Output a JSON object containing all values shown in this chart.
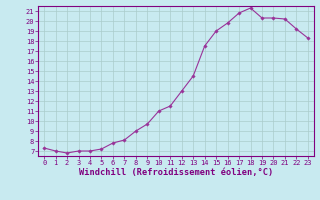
{
  "x": [
    0,
    1,
    2,
    3,
    4,
    5,
    6,
    7,
    8,
    9,
    10,
    11,
    12,
    13,
    14,
    15,
    16,
    17,
    18,
    19,
    20,
    21,
    22,
    23
  ],
  "y": [
    7.3,
    7.0,
    6.8,
    7.0,
    7.0,
    7.2,
    7.8,
    8.1,
    9.0,
    9.7,
    11.0,
    11.5,
    13.0,
    14.5,
    17.5,
    19.0,
    19.8,
    20.8,
    21.3,
    20.3,
    20.3,
    20.2,
    19.2,
    18.3
  ],
  "line_color": "#993399",
  "marker": "D",
  "marker_size": 1.8,
  "bg_color": "#c8eaf0",
  "grid_color": "#aacccc",
  "xlabel": "Windchill (Refroidissement éolien,°C)",
  "xlim": [
    -0.5,
    23.5
  ],
  "ylim": [
    6.5,
    21.5
  ],
  "yticks": [
    7,
    8,
    9,
    10,
    11,
    12,
    13,
    14,
    15,
    16,
    17,
    18,
    19,
    20,
    21
  ],
  "xticks": [
    0,
    1,
    2,
    3,
    4,
    5,
    6,
    7,
    8,
    9,
    10,
    11,
    12,
    13,
    14,
    15,
    16,
    17,
    18,
    19,
    20,
    21,
    22,
    23
  ],
  "tick_label_fontsize": 5.0,
  "xlabel_fontsize": 6.2,
  "spine_color": "#800080",
  "extra_yticks": [
    7,
    8,
    9,
    10,
    11,
    12,
    13,
    14,
    15,
    16,
    17,
    18,
    19,
    20,
    21
  ]
}
